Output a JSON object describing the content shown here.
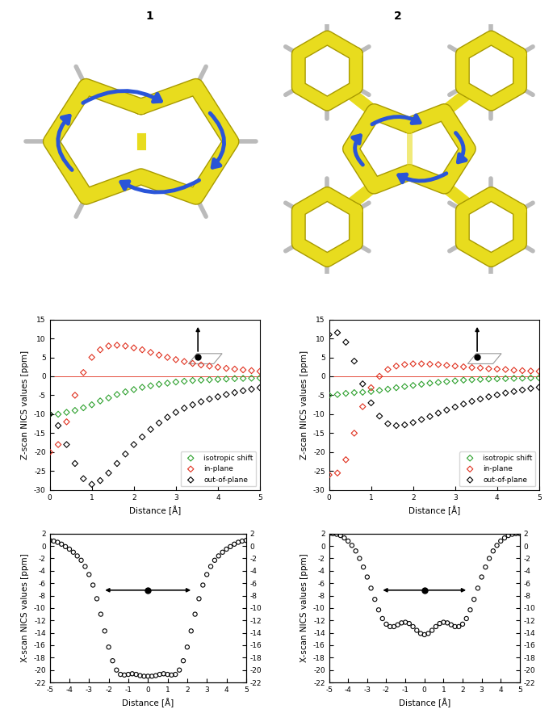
{
  "headers": [
    "1",
    "2"
  ],
  "chart_data": [
    {
      "type": "scatter",
      "xlabel": "Distance [Å]",
      "ylabel": "Z-scan NICS values [ppm]",
      "x": [
        0.0,
        0.2,
        0.4,
        0.6,
        0.8,
        1.0,
        1.2,
        1.4,
        1.6,
        1.8,
        2.0,
        2.2,
        2.4,
        2.6,
        2.8,
        3.0,
        3.2,
        3.4,
        3.6,
        3.8,
        4.0,
        4.2,
        4.4,
        4.6,
        4.8,
        5.0
      ],
      "xlim": [
        0,
        5
      ],
      "xticks": [
        0,
        1,
        2,
        3,
        4,
        5
      ],
      "ylim": [
        -30,
        15
      ],
      "yticks": [
        -30,
        -25,
        -20,
        -15,
        -10,
        -5,
        0,
        5,
        10,
        15
      ],
      "reference_line": 0,
      "legend": "lower right",
      "series": [
        {
          "name": "isotropic shift",
          "color": "#2ca02c",
          "marker": "diamond",
          "values": [
            -10,
            -10,
            -9.5,
            -9,
            -8.3,
            -7.5,
            -6.5,
            -5.7,
            -4.8,
            -4.1,
            -3.5,
            -2.9,
            -2.5,
            -2.1,
            -1.8,
            -1.5,
            -1.3,
            -1.1,
            -1.0,
            -0.9,
            -0.8,
            -0.7,
            -0.6,
            -0.55,
            -0.5,
            -0.45
          ]
        },
        {
          "name": "in-plane",
          "color": "#e0301e",
          "marker": "diamond",
          "values": [
            -20,
            -18,
            -12,
            -5,
            1,
            5,
            7,
            8,
            8.2,
            8,
            7.5,
            7,
            6.3,
            5.6,
            5,
            4.4,
            3.9,
            3.4,
            3.0,
            2.7,
            2.4,
            2.1,
            1.9,
            1.7,
            1.5,
            1.3
          ]
        },
        {
          "name": "out-of-plane",
          "color": "#000000",
          "marker": "diamond",
          "values": [
            -10,
            -13,
            -18,
            -23,
            -27,
            -28.5,
            -27.5,
            -25.5,
            -23,
            -20.5,
            -18,
            -16,
            -14,
            -12.3,
            -10.8,
            -9.5,
            -8.4,
            -7.5,
            -6.7,
            -6,
            -5.4,
            -4.8,
            -4.3,
            -3.8,
            -3.4,
            -3.0
          ]
        }
      ]
    },
    {
      "type": "scatter",
      "xlabel": "Distance [Å]",
      "ylabel": "Z-scan NICS values [ppm]",
      "x": [
        0.0,
        0.2,
        0.4,
        0.6,
        0.8,
        1.0,
        1.2,
        1.4,
        1.6,
        1.8,
        2.0,
        2.2,
        2.4,
        2.6,
        2.8,
        3.0,
        3.2,
        3.4,
        3.6,
        3.8,
        4.0,
        4.2,
        4.4,
        4.6,
        4.8,
        5.0
      ],
      "xlim": [
        0,
        5
      ],
      "xticks": [
        0,
        1,
        2,
        3,
        4,
        5
      ],
      "ylim": [
        -30,
        15
      ],
      "yticks": [
        -30,
        -25,
        -20,
        -15,
        -10,
        -5,
        0,
        5,
        10,
        15
      ],
      "reference_line": 0,
      "legend": "lower right",
      "series": [
        {
          "name": "isotropic shift",
          "color": "#2ca02c",
          "marker": "diamond",
          "values": [
            -5,
            -4.8,
            -4.5,
            -4.3,
            -4.2,
            -4.0,
            -3.7,
            -3.4,
            -3.0,
            -2.7,
            -2.4,
            -2.1,
            -1.8,
            -1.6,
            -1.4,
            -1.2,
            -1.0,
            -0.9,
            -0.8,
            -0.7,
            -0.65,
            -0.6,
            -0.55,
            -0.5,
            -0.45,
            -0.4
          ]
        },
        {
          "name": "in-plane",
          "color": "#e0301e",
          "marker": "diamond",
          "values": [
            -26,
            -25.5,
            -22,
            -15,
            -8,
            -3,
            0,
            1.8,
            2.7,
            3.1,
            3.3,
            3.3,
            3.2,
            3.1,
            2.9,
            2.7,
            2.5,
            2.3,
            2.2,
            2.0,
            1.9,
            1.8,
            1.6,
            1.5,
            1.4,
            1.3
          ]
        },
        {
          "name": "out-of-plane",
          "color": "#000000",
          "marker": "diamond",
          "values": [
            11,
            11.5,
            9,
            4,
            -2,
            -7,
            -10.5,
            -12.5,
            -13,
            -12.8,
            -12.2,
            -11.4,
            -10.6,
            -9.7,
            -8.9,
            -8.1,
            -7.3,
            -6.6,
            -6,
            -5.4,
            -4.9,
            -4.4,
            -4,
            -3.6,
            -3.2,
            -2.9
          ]
        }
      ]
    },
    {
      "type": "scatter",
      "xlabel": "Distance [Å]",
      "ylabel": "X-scan NICS values [ppm]",
      "x": [
        -5.0,
        -4.8,
        -4.6,
        -4.4,
        -4.2,
        -4.0,
        -3.8,
        -3.6,
        -3.4,
        -3.2,
        -3.0,
        -2.8,
        -2.6,
        -2.4,
        -2.2,
        -2.0,
        -1.8,
        -1.6,
        -1.4,
        -1.2,
        -1.0,
        -0.8,
        -0.6,
        -0.4,
        -0.2,
        0.0,
        0.2,
        0.4,
        0.6,
        0.8,
        1.0,
        1.2,
        1.4,
        1.6,
        1.8,
        2.0,
        2.2,
        2.4,
        2.6,
        2.8,
        3.0,
        3.2,
        3.4,
        3.6,
        3.8,
        4.0,
        4.2,
        4.4,
        4.6,
        4.8,
        5.0
      ],
      "xlim": [
        -5,
        5
      ],
      "xticks": [
        -5,
        -4,
        -3,
        -2,
        -1,
        0,
        1,
        2,
        3,
        4,
        5
      ],
      "ylim": [
        -22,
        2
      ],
      "yticks": [
        -22,
        -20,
        -18,
        -16,
        -14,
        -12,
        -10,
        -8,
        -6,
        -4,
        -2,
        0,
        2
      ],
      "y2lim": [
        -22,
        2
      ],
      "y2ticks": [
        -22,
        -20,
        -18,
        -16,
        -14,
        -12,
        -10,
        -8,
        -6,
        -4,
        -2,
        0,
        2
      ],
      "series": [
        {
          "color": "#000000",
          "marker": "circle",
          "values": [
            0.9,
            0.8,
            0.6,
            0.3,
            -0.1,
            -0.5,
            -1.0,
            -1.6,
            -2.3,
            -3.3,
            -4.6,
            -6.3,
            -8.5,
            -11.0,
            -13.7,
            -16.3,
            -18.5,
            -20.0,
            -20.7,
            -20.8,
            -20.7,
            -20.6,
            -20.7,
            -20.9,
            -21.0,
            -21.0,
            -21.0,
            -20.9,
            -20.7,
            -20.6,
            -20.7,
            -20.8,
            -20.7,
            -20.0,
            -18.5,
            -16.3,
            -13.7,
            -11.0,
            -8.5,
            -6.3,
            -4.6,
            -3.3,
            -2.3,
            -1.6,
            -1.0,
            -0.5,
            -0.1,
            0.3,
            0.6,
            0.8,
            0.9
          ]
        }
      ]
    },
    {
      "type": "scatter",
      "xlabel": "Distance [Å]",
      "ylabel": "X-scan NICS values [ppm]",
      "x": [
        -5.0,
        -4.8,
        -4.6,
        -4.4,
        -4.2,
        -4.0,
        -3.8,
        -3.6,
        -3.4,
        -3.2,
        -3.0,
        -2.8,
        -2.6,
        -2.4,
        -2.2,
        -2.0,
        -1.8,
        -1.6,
        -1.4,
        -1.2,
        -1.0,
        -0.8,
        -0.6,
        -0.4,
        -0.2,
        0.0,
        0.2,
        0.4,
        0.6,
        0.8,
        1.0,
        1.2,
        1.4,
        1.6,
        1.8,
        2.0,
        2.2,
        2.4,
        2.6,
        2.8,
        3.0,
        3.2,
        3.4,
        3.6,
        3.8,
        4.0,
        4.2,
        4.4,
        4.6,
        4.8,
        5.0
      ],
      "xlim": [
        -5,
        5
      ],
      "xticks": [
        -5,
        -4,
        -3,
        -2,
        -1,
        0,
        1,
        2,
        3,
        4,
        5
      ],
      "ylim": [
        -22,
        2
      ],
      "yticks": [
        -22,
        -20,
        -18,
        -16,
        -14,
        -12,
        -10,
        -8,
        -6,
        -4,
        -2,
        0,
        2
      ],
      "y2lim": [
        -22,
        2
      ],
      "y2ticks": [
        -22,
        -20,
        -18,
        -16,
        -14,
        -12,
        -10,
        -8,
        -6,
        -4,
        -2,
        0,
        2
      ],
      "series": [
        {
          "color": "#000000",
          "marker": "circle",
          "values": [
            2.0,
            2.0,
            1.9,
            1.7,
            1.3,
            0.8,
            0.1,
            -0.8,
            -2.0,
            -3.4,
            -5.0,
            -6.8,
            -8.6,
            -10.3,
            -11.7,
            -12.6,
            -13.0,
            -13.0,
            -12.7,
            -12.4,
            -12.3,
            -12.5,
            -13.0,
            -13.6,
            -14.1,
            -14.3,
            -14.1,
            -13.6,
            -13.0,
            -12.5,
            -12.3,
            -12.4,
            -12.7,
            -13.0,
            -13.0,
            -12.6,
            -11.7,
            -10.3,
            -8.6,
            -6.8,
            -5.0,
            -3.4,
            -2.0,
            -0.8,
            0.1,
            0.8,
            1.3,
            1.7,
            1.9,
            2.0,
            2.0
          ]
        }
      ]
    }
  ]
}
